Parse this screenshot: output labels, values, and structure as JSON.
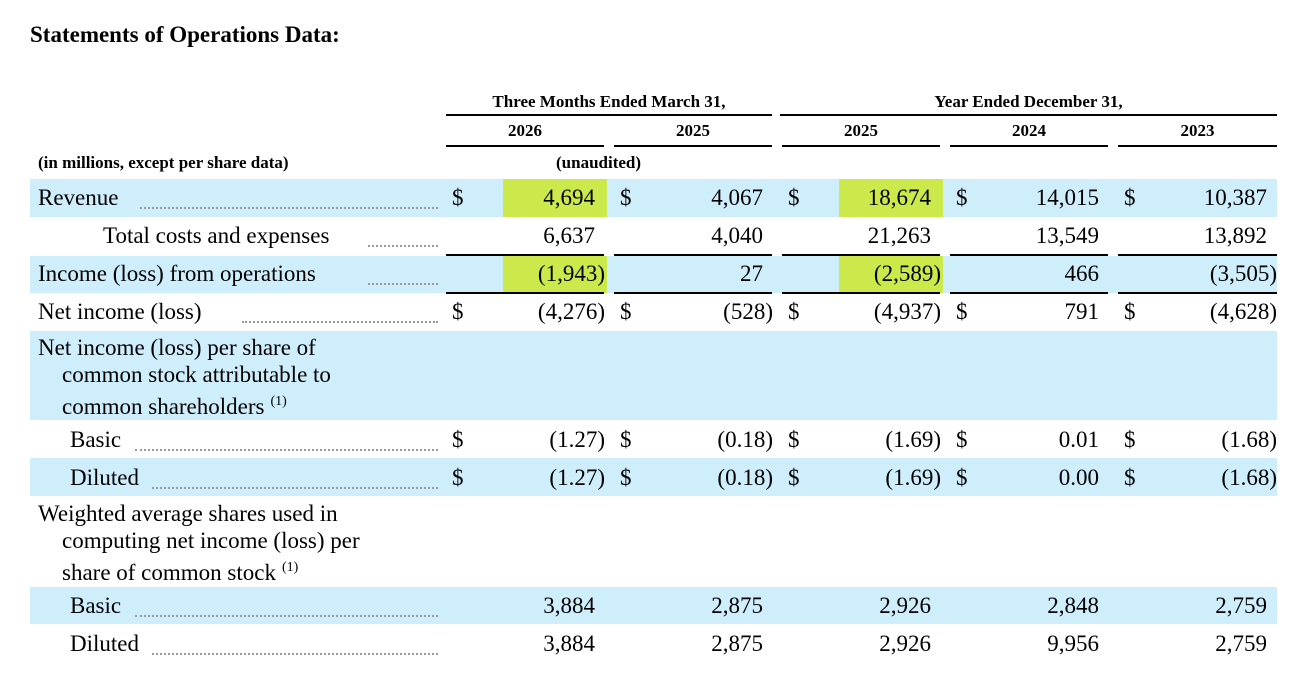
{
  "title": "Statements of Operations Data:",
  "header": {
    "group1": "Three Months Ended March 31,",
    "group2": "Year Ended December 31,",
    "years": [
      "2026",
      "2025",
      "2025",
      "2024",
      "2023"
    ],
    "units_note": "(in millions, except per share data)",
    "unaudited": "(unaudited)"
  },
  "rows": {
    "revenue": {
      "label": "Revenue",
      "currency": "$",
      "values": [
        "4,694",
        "4,067",
        "18,674",
        "14,015",
        "10,387"
      ]
    },
    "costs": {
      "label": "Total costs and expenses",
      "values": [
        "6,637",
        "4,040",
        "21,263",
        "13,549",
        "13,892"
      ]
    },
    "ops": {
      "label": "Income (loss) from operations",
      "values": [
        "(1,943)",
        "27",
        "(2,589)",
        "466",
        "(3,505)"
      ]
    },
    "net": {
      "label": "Net income (loss)",
      "currency": "$",
      "values": [
        "(4,276)",
        "(528)",
        "(4,937)",
        "791",
        "(4,628)"
      ]
    },
    "eps_heading": {
      "line1": "Net income (loss) per share of",
      "line2": "common stock attributable to",
      "line3": "common shareholders",
      "footnote": "(1)"
    },
    "eps_basic": {
      "label": "Basic",
      "currency": "$",
      "values": [
        "(1.27)",
        "(0.18)",
        "(1.69)",
        "0.01",
        "(1.68)"
      ]
    },
    "eps_diluted": {
      "label": "Diluted",
      "currency": "$",
      "values": [
        "(1.27)",
        "(0.18)",
        "(1.69)",
        "0.00",
        "(1.68)"
      ]
    },
    "shares_heading": {
      "line1": "Weighted average shares used in",
      "line2": "computing net income (loss) per",
      "line3": "share of common stock",
      "footnote": "(1)"
    },
    "shares_basic": {
      "label": "Basic",
      "values": [
        "3,884",
        "2,875",
        "2,926",
        "2,848",
        "2,759"
      ]
    },
    "shares_diluted": {
      "label": "Diluted",
      "values": [
        "3,884",
        "2,875",
        "2,926",
        "9,956",
        "2,759"
      ]
    }
  },
  "colors": {
    "band": "#cfeefc",
    "highlight": "#cce94c"
  }
}
